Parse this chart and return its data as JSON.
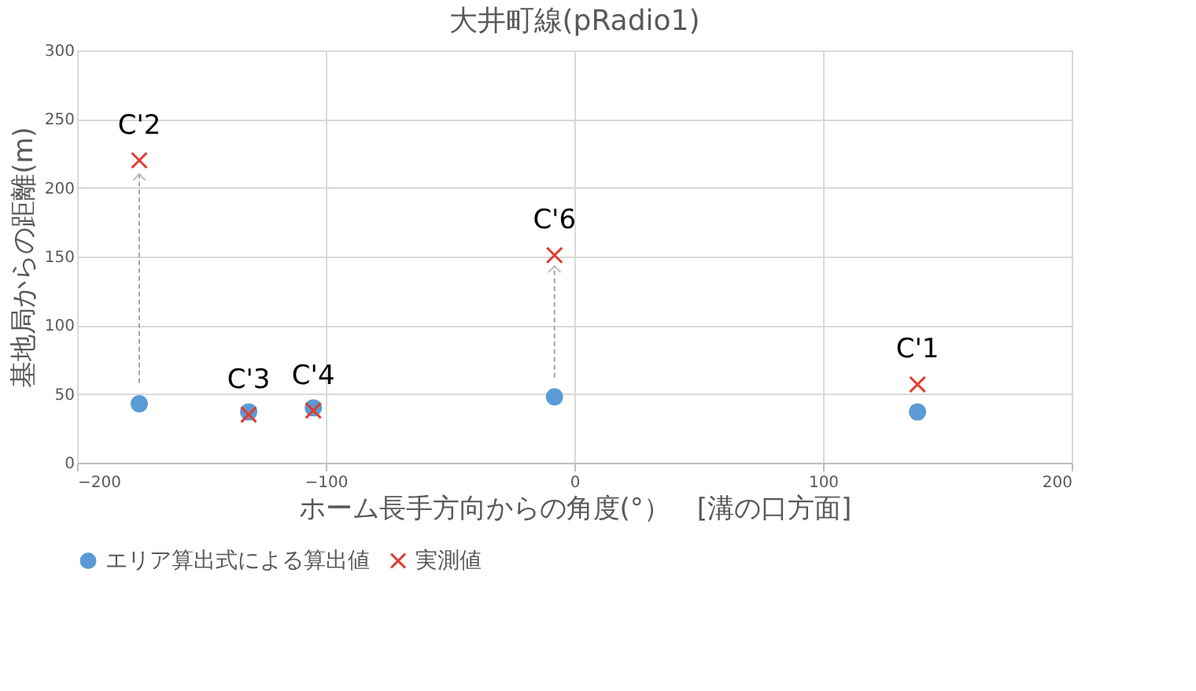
{
  "chart_data": {
    "type": "scatter",
    "title": "大井町線(pRadio1)",
    "xlabel": "ホーム長手方向からの角度(°）　[溝の口方面]",
    "ylabel": "基地局からの距離(m)",
    "xlim": [
      -200,
      200
    ],
    "xticks": [
      -200,
      -100,
      0,
      100,
      200
    ],
    "ylim": [
      0,
      300
    ],
    "yticks": [
      0,
      50,
      100,
      150,
      200,
      250,
      300
    ],
    "grid": true,
    "legend": "bottom",
    "series": [
      {
        "name": "エリア算出式による算出値",
        "color": "#5b9bd5",
        "marker": "circle",
        "x": [
          -175,
          -131,
          -105,
          -8,
          138
        ],
        "values": [
          43,
          37,
          40,
          48,
          37
        ]
      },
      {
        "name": "実測値",
        "color": "#e03c31",
        "marker": "cross",
        "x": [
          -175,
          -131,
          -105,
          -8,
          138
        ],
        "values": [
          220,
          35,
          38,
          151,
          57
        ]
      },
      {
        "type": "line",
        "color": "#a6a6a6",
        "line_style": "dashed",
        "x": [
          -175,
          -175
        ],
        "values": [
          58,
          210
        ]
      },
      {
        "type": "line",
        "color": "#a6a6a6",
        "line_style": "dashed",
        "x": [
          -8,
          -8
        ],
        "values": [
          62,
          143
        ]
      }
    ],
    "annotations": [
      {
        "text": "C'2",
        "x": -175,
        "y": 220
      },
      {
        "text": "C'3",
        "x": -131,
        "y": 35
      },
      {
        "text": "C'4",
        "x": -105,
        "y": 38
      },
      {
        "text": "C'6",
        "x": -8,
        "y": 151
      },
      {
        "text": "C'1",
        "x": 138,
        "y": 57
      }
    ]
  }
}
